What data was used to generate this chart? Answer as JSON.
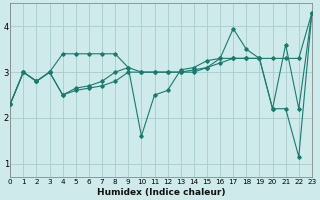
{
  "xlabel": "Humidex (Indice chaleur)",
  "background_color": "#ceeaea",
  "line_color": "#1a7a6e",
  "grid_color": "#aacccc",
  "xlim": [
    0,
    23
  ],
  "ylim": [
    0.7,
    4.5
  ],
  "yticks": [
    1,
    2,
    3,
    4
  ],
  "xticks": [
    0,
    1,
    2,
    3,
    4,
    5,
    6,
    7,
    8,
    9,
    10,
    11,
    12,
    13,
    14,
    15,
    16,
    17,
    18,
    19,
    20,
    21,
    22,
    23
  ],
  "lines": [
    {
      "x": [
        0,
        1,
        2,
        3,
        4,
        5,
        6,
        7,
        8,
        9,
        10,
        11,
        12,
        13,
        14,
        15,
        16,
        17,
        18,
        19,
        20,
        21,
        22,
        23
      ],
      "y": [
        2.3,
        3.0,
        2.8,
        3.0,
        3.4,
        3.4,
        3.4,
        3.4,
        3.4,
        3.1,
        3.0,
        3.0,
        3.0,
        3.0,
        3.05,
        3.1,
        3.3,
        3.3,
        3.3,
        3.3,
        3.3,
        3.3,
        3.3,
        4.3
      ]
    },
    {
      "x": [
        0,
        1,
        2,
        3,
        4,
        5,
        6,
        7,
        8,
        9,
        10,
        11,
        12,
        13,
        14,
        15,
        16,
        17,
        18,
        19,
        20,
        21,
        22,
        23
      ],
      "y": [
        2.3,
        3.0,
        2.8,
        3.0,
        2.5,
        2.65,
        2.7,
        2.8,
        3.0,
        3.1,
        1.6,
        2.5,
        2.6,
        3.05,
        3.1,
        3.25,
        3.3,
        3.95,
        3.5,
        3.3,
        2.2,
        3.6,
        2.2,
        4.3
      ]
    },
    {
      "x": [
        0,
        1,
        2,
        3,
        4,
        5,
        6,
        7,
        8,
        9,
        10,
        11,
        12,
        13,
        14,
        15,
        16,
        17,
        18,
        19,
        20,
        21,
        22,
        23
      ],
      "y": [
        2.3,
        3.0,
        2.8,
        3.0,
        2.5,
        2.6,
        2.65,
        2.7,
        2.8,
        3.0,
        3.0,
        3.0,
        3.0,
        3.0,
        3.0,
        3.1,
        3.2,
        3.3,
        3.3,
        3.3,
        2.2,
        2.2,
        1.15,
        4.3
      ]
    }
  ]
}
